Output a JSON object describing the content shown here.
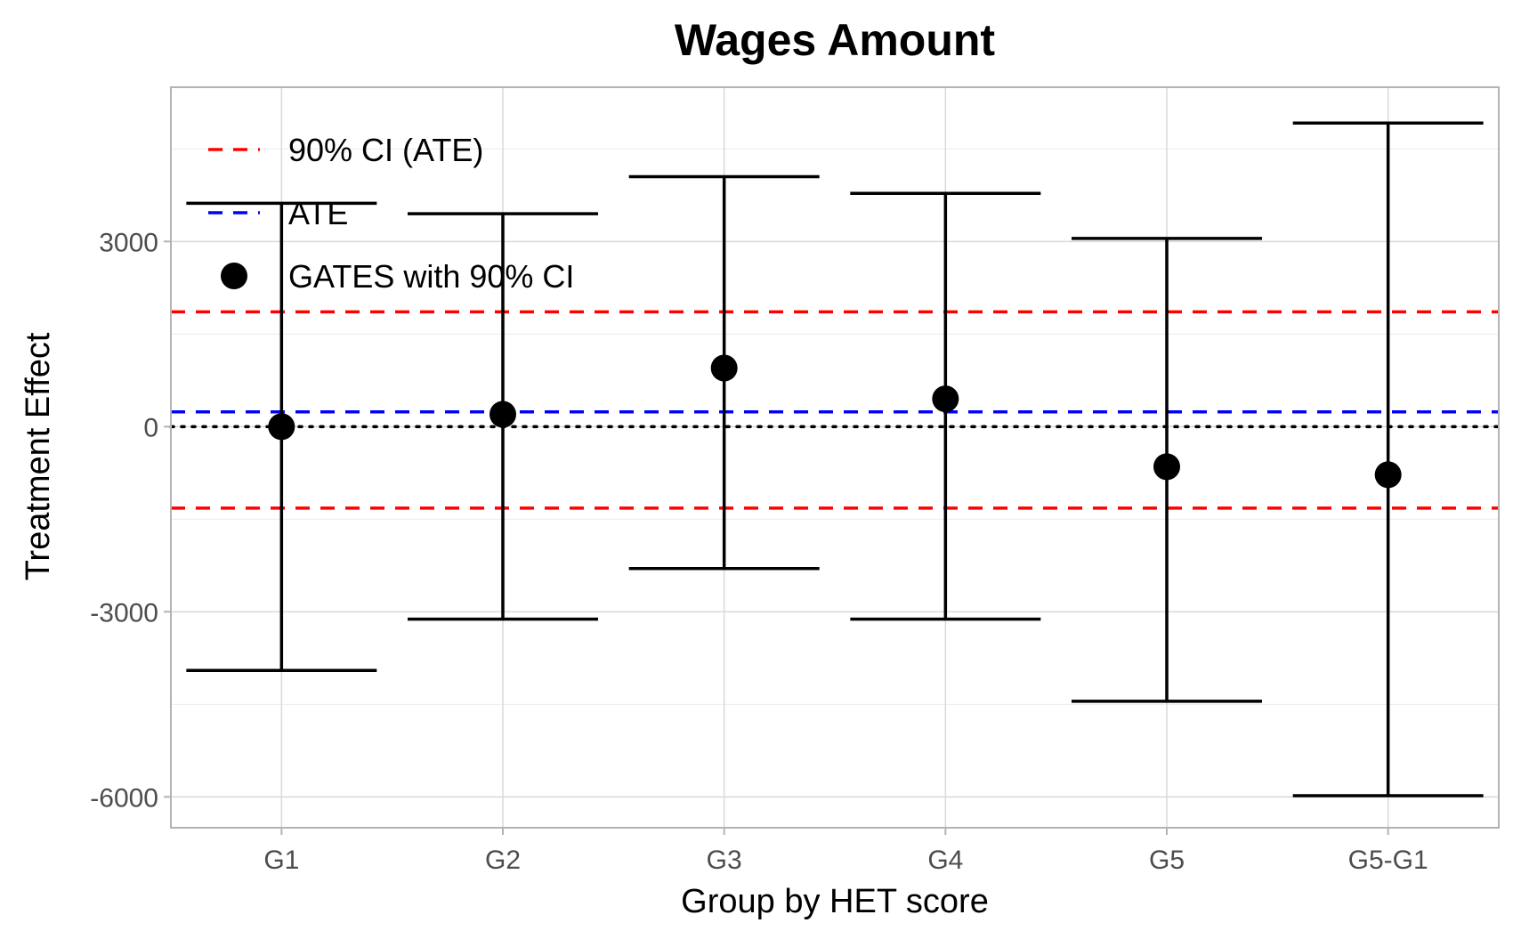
{
  "chart_data": {
    "type": "errorbar",
    "title": "Wages Amount",
    "xlabel": "Group by HET score",
    "ylabel": "Treatment Effect",
    "categories": [
      "G1",
      "G2",
      "G3",
      "G4",
      "G5",
      "G5-G1"
    ],
    "series": [
      {
        "name": "GATES with 90% CI",
        "values": [
          0,
          200,
          950,
          450,
          -650,
          -780
        ],
        "lower": [
          -3950,
          -3120,
          -2300,
          -3120,
          -4450,
          -5980
        ],
        "upper": [
          3620,
          3450,
          4050,
          3780,
          3050,
          4920
        ],
        "color": "#000000"
      }
    ],
    "reference_lines": {
      "ate": {
        "name": "ATE",
        "value": 240,
        "color": "#0000ff",
        "style": "dashed"
      },
      "ate_ci": {
        "name": "90% CI (ATE)",
        "lower": -1320,
        "upper": 1860,
        "color": "#ff0000",
        "style": "dashed"
      },
      "zero": {
        "value": 0,
        "color": "#000000",
        "style": "dotted"
      }
    },
    "yticks": [
      3000,
      0,
      -3000,
      -6000
    ],
    "ytick_labels": [
      "3000",
      "0",
      "-3000",
      "-6000"
    ],
    "ylim": [
      -6500,
      5500
    ],
    "grid": true,
    "legend_position": "top-left",
    "legend": [
      {
        "label": "90% CI (ATE)",
        "symbol": "dashed-line",
        "color": "#ff0000"
      },
      {
        "label": "ATE",
        "symbol": "dashed-line",
        "color": "#0000ff"
      },
      {
        "label": "GATES with 90% CI",
        "symbol": "point",
        "color": "#000000"
      }
    ]
  }
}
